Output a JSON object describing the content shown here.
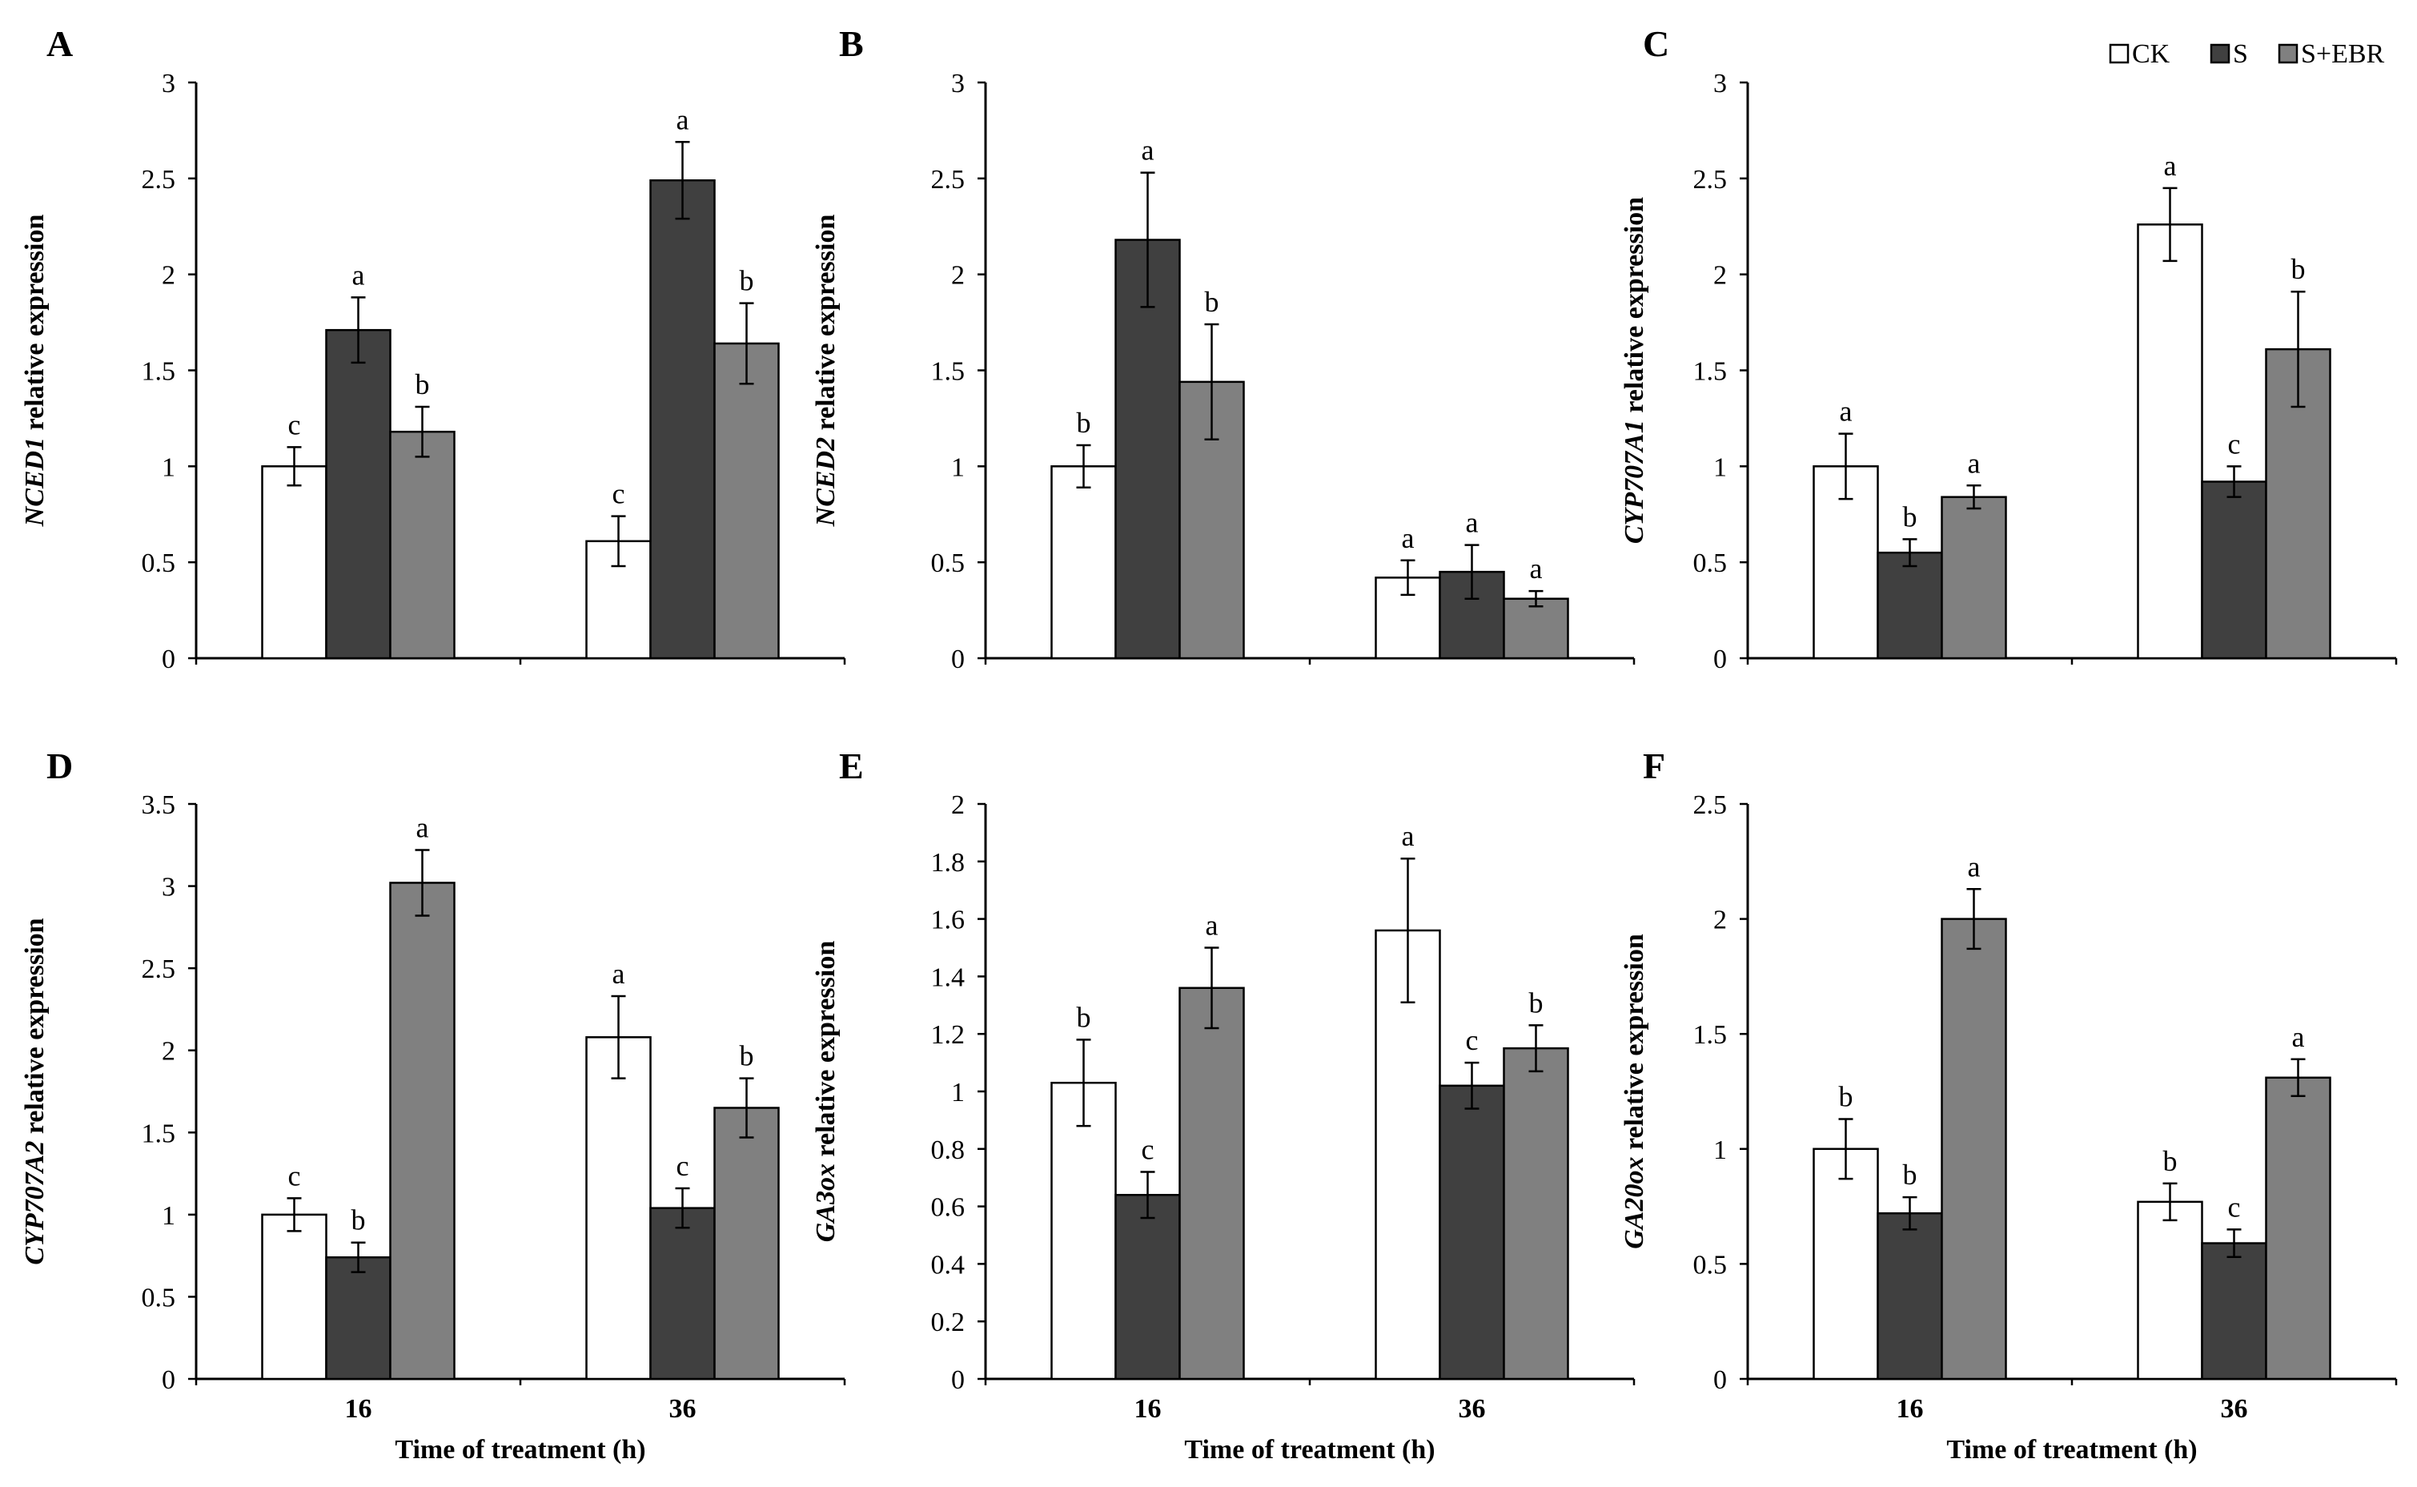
{
  "legend": [
    {
      "label": "CK",
      "color": "#ffffff"
    },
    {
      "label": "S",
      "color": "#404040"
    },
    {
      "label": "S+EBR",
      "color": "#808080"
    }
  ],
  "chart_data": [
    {
      "panel": "A",
      "type": "bar",
      "ylabel_gene": "NCED1",
      "ylabel_rest": " relative expression",
      "xlabel": "",
      "categories": [
        "16",
        "36"
      ],
      "ylim": [
        0,
        3
      ],
      "yticks": [
        "0",
        "0.5",
        "1",
        "1.5",
        "2",
        "2.5",
        "3"
      ],
      "show_xcats": false,
      "series": [
        {
          "name": "CK",
          "values": [
            1.0,
            0.61
          ],
          "errors": [
            0.1,
            0.13
          ],
          "letters": [
            "c",
            "c"
          ]
        },
        {
          "name": "S",
          "values": [
            1.71,
            2.49
          ],
          "errors": [
            0.17,
            0.2
          ],
          "letters": [
            "a",
            "a"
          ]
        },
        {
          "name": "S+EBR",
          "values": [
            1.18,
            1.64
          ],
          "errors": [
            0.13,
            0.21
          ],
          "letters": [
            "b",
            "b"
          ]
        }
      ]
    },
    {
      "panel": "B",
      "type": "bar",
      "ylabel_gene": "NCED2",
      "ylabel_rest": " relative expression",
      "xlabel": "",
      "categories": [
        "16",
        "36"
      ],
      "ylim": [
        0,
        3
      ],
      "yticks": [
        "0",
        "0.5",
        "1",
        "1.5",
        "2",
        "2.5",
        "3"
      ],
      "show_xcats": false,
      "series": [
        {
          "name": "CK",
          "values": [
            1.0,
            0.42
          ],
          "errors": [
            0.11,
            0.09
          ],
          "letters": [
            "b",
            "a"
          ]
        },
        {
          "name": "S",
          "values": [
            2.18,
            0.45
          ],
          "errors": [
            0.35,
            0.14
          ],
          "letters": [
            "a",
            "a"
          ]
        },
        {
          "name": "S+EBR",
          "values": [
            1.44,
            0.31
          ],
          "errors": [
            0.3,
            0.04
          ],
          "letters": [
            "b",
            "a"
          ]
        }
      ]
    },
    {
      "panel": "C",
      "type": "bar",
      "ylabel_gene": "CYP707A1",
      "ylabel_rest": " relative expression",
      "xlabel": "",
      "categories": [
        "16",
        "36"
      ],
      "ylim": [
        0,
        3
      ],
      "yticks": [
        "0",
        "0.5",
        "1",
        "1.5",
        "2",
        "2.5",
        "3"
      ],
      "show_xcats": false,
      "series": [
        {
          "name": "CK",
          "values": [
            1.0,
            2.26
          ],
          "errors": [
            0.17,
            0.19
          ],
          "letters": [
            "a",
            "a"
          ]
        },
        {
          "name": "S",
          "values": [
            0.55,
            0.92
          ],
          "errors": [
            0.07,
            0.08
          ],
          "letters": [
            "b",
            "c"
          ]
        },
        {
          "name": "S+EBR",
          "values": [
            0.84,
            1.61
          ],
          "errors": [
            0.06,
            0.3
          ],
          "letters": [
            "a",
            "b"
          ]
        }
      ]
    },
    {
      "panel": "D",
      "type": "bar",
      "ylabel_gene": "CYP707A2",
      "ylabel_rest": " relative expression",
      "xlabel": "Time of treatment (h)",
      "categories": [
        "16",
        "36"
      ],
      "ylim": [
        0,
        3.5
      ],
      "yticks": [
        "0",
        "0.5",
        "1",
        "1.5",
        "2",
        "2.5",
        "3",
        "3.5"
      ],
      "show_xcats": true,
      "series": [
        {
          "name": "CK",
          "values": [
            1.0,
            2.08
          ],
          "errors": [
            0.1,
            0.25
          ],
          "letters": [
            "c",
            "a"
          ]
        },
        {
          "name": "S",
          "values": [
            0.74,
            1.04
          ],
          "errors": [
            0.09,
            0.12
          ],
          "letters": [
            "b",
            "c"
          ]
        },
        {
          "name": "S+EBR",
          "values": [
            3.02,
            1.65
          ],
          "errors": [
            0.2,
            0.18
          ],
          "letters": [
            "a",
            "b"
          ]
        }
      ]
    },
    {
      "panel": "E",
      "type": "bar",
      "ylabel_gene": "GA3ox",
      "ylabel_rest": " relative expression",
      "xlabel": "Time of treatment (h)",
      "categories": [
        "16",
        "36"
      ],
      "ylim": [
        0,
        2
      ],
      "yticks": [
        "0",
        "0.2",
        "0.4",
        "0.6",
        "0.8",
        "1",
        "1.2",
        "1.4",
        "1.6",
        "1.8",
        "2"
      ],
      "show_xcats": true,
      "series": [
        {
          "name": "CK",
          "values": [
            1.03,
            1.56
          ],
          "errors": [
            0.15,
            0.25
          ],
          "letters": [
            "b",
            "a"
          ]
        },
        {
          "name": "S",
          "values": [
            0.64,
            1.02
          ],
          "errors": [
            0.08,
            0.08
          ],
          "letters": [
            "c",
            "c"
          ]
        },
        {
          "name": "S+EBR",
          "values": [
            1.36,
            1.15
          ],
          "errors": [
            0.14,
            0.08
          ],
          "letters": [
            "a",
            "b"
          ]
        }
      ]
    },
    {
      "panel": "F",
      "type": "bar",
      "ylabel_gene": "GA20ox",
      "ylabel_rest": " relative expression",
      "xlabel": "Time of treatment (h)",
      "categories": [
        "16",
        "36"
      ],
      "ylim": [
        0,
        2.5
      ],
      "yticks": [
        "0",
        "0.5",
        "1",
        "1.5",
        "2",
        "2.5"
      ],
      "show_xcats": true,
      "series": [
        {
          "name": "CK",
          "values": [
            1.0,
            0.77
          ],
          "errors": [
            0.13,
            0.08
          ],
          "letters": [
            "b",
            "b"
          ]
        },
        {
          "name": "S",
          "values": [
            0.72,
            0.59
          ],
          "errors": [
            0.07,
            0.06
          ],
          "letters": [
            "b",
            "c"
          ]
        },
        {
          "name": "S+EBR",
          "values": [
            2.0,
            1.31
          ],
          "errors": [
            0.13,
            0.08
          ],
          "letters": [
            "a",
            "a"
          ]
        }
      ]
    }
  ]
}
